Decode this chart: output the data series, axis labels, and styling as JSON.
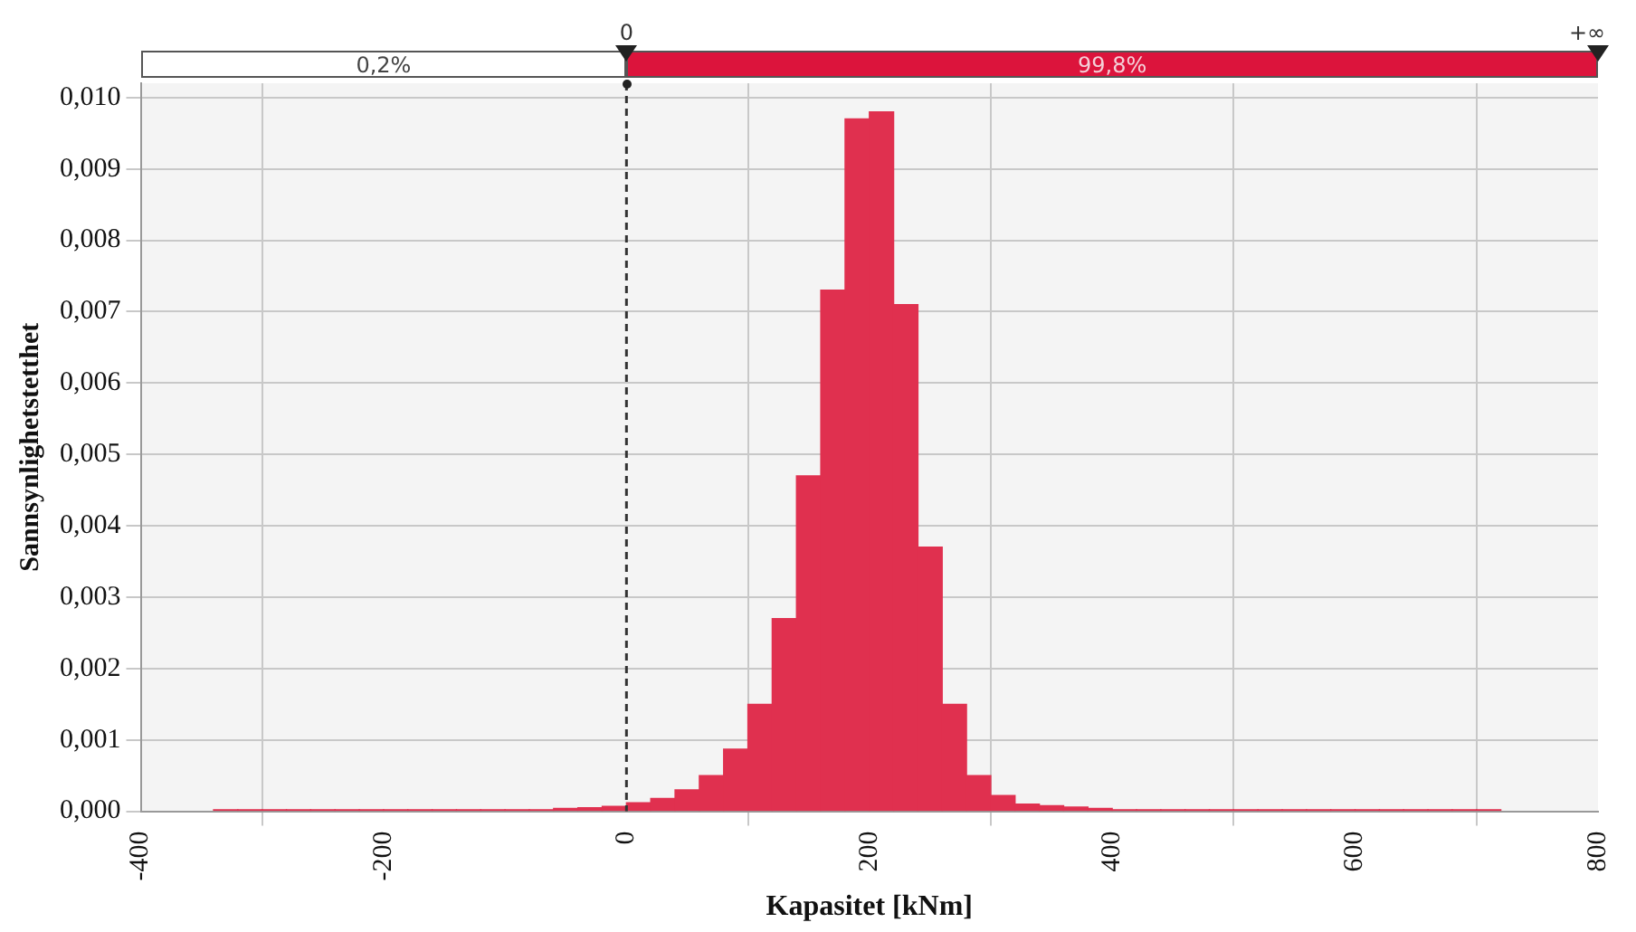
{
  "chart_data": {
    "type": "histogram",
    "xlabel": "Kapasitet [kNm]",
    "ylabel": "Sannsynlighetstetthet",
    "annotations": [
      "0",
      "+∞",
      "0,2%",
      "99,8%"
    ],
    "bins": [
      -340,
      -320,
      -300,
      -280,
      -260,
      -240,
      -220,
      -200,
      -180,
      -160,
      -140,
      -120,
      -100,
      -80,
      -60,
      -40,
      -20,
      0,
      20,
      40,
      60,
      80,
      100,
      120,
      140,
      160,
      180,
      200,
      220,
      240,
      260,
      280,
      300,
      320,
      340,
      360,
      380,
      400,
      420,
      440,
      460,
      480,
      500,
      520,
      540,
      560,
      580,
      600,
      620,
      640,
      660,
      680,
      700,
      720
    ],
    "values": [
      2e-05,
      2e-05,
      2e-05,
      2e-05,
      2e-05,
      2e-05,
      2e-05,
      2e-05,
      2e-05,
      2e-05,
      2e-05,
      2e-05,
      2e-05,
      2e-05,
      4e-05,
      5e-05,
      7e-05,
      0.00012,
      0.00018,
      0.0003,
      0.0005,
      0.00087,
      0.0015,
      0.0027,
      0.0047,
      0.0073,
      0.0097,
      0.0098,
      0.0071,
      0.0037,
      0.0015,
      0.0005,
      0.00022,
      0.0001,
      8e-05,
      6e-05,
      4e-05,
      2e-05,
      2e-05,
      2e-05,
      2e-05,
      2e-05,
      2e-05,
      2e-05,
      2e-05,
      2e-05,
      2e-05,
      2e-05,
      2e-05,
      2e-05,
      2e-05,
      2e-05,
      2e-05
    ],
    "color": "#e0304f",
    "xlim": [
      -400,
      800
    ],
    "xticks": [
      -400,
      -200,
      0,
      200,
      400,
      600,
      800
    ],
    "ylim": [
      0,
      0.0102
    ],
    "yticks": [
      {
        "value": 0,
        "label": "0,000"
      },
      {
        "value": 0.001,
        "label": "0,001"
      },
      {
        "value": 0.002,
        "label": "0,002"
      },
      {
        "value": 0.003,
        "label": "0,003"
      },
      {
        "value": 0.004,
        "label": "0,004"
      },
      {
        "value": 0.005,
        "label": "0,005"
      },
      {
        "value": 0.006,
        "label": "0,006"
      },
      {
        "value": 0.007,
        "label": "0,007"
      },
      {
        "value": 0.008,
        "label": "0,008"
      },
      {
        "value": 0.009,
        "label": "0,009"
      },
      {
        "value": 0.01,
        "label": "0,010"
      }
    ],
    "ref_lines": [
      {
        "axis": "x",
        "value": 0,
        "line_style": "dashed",
        "color": "#333333"
      }
    ],
    "grid": true,
    "legend": false
  }
}
